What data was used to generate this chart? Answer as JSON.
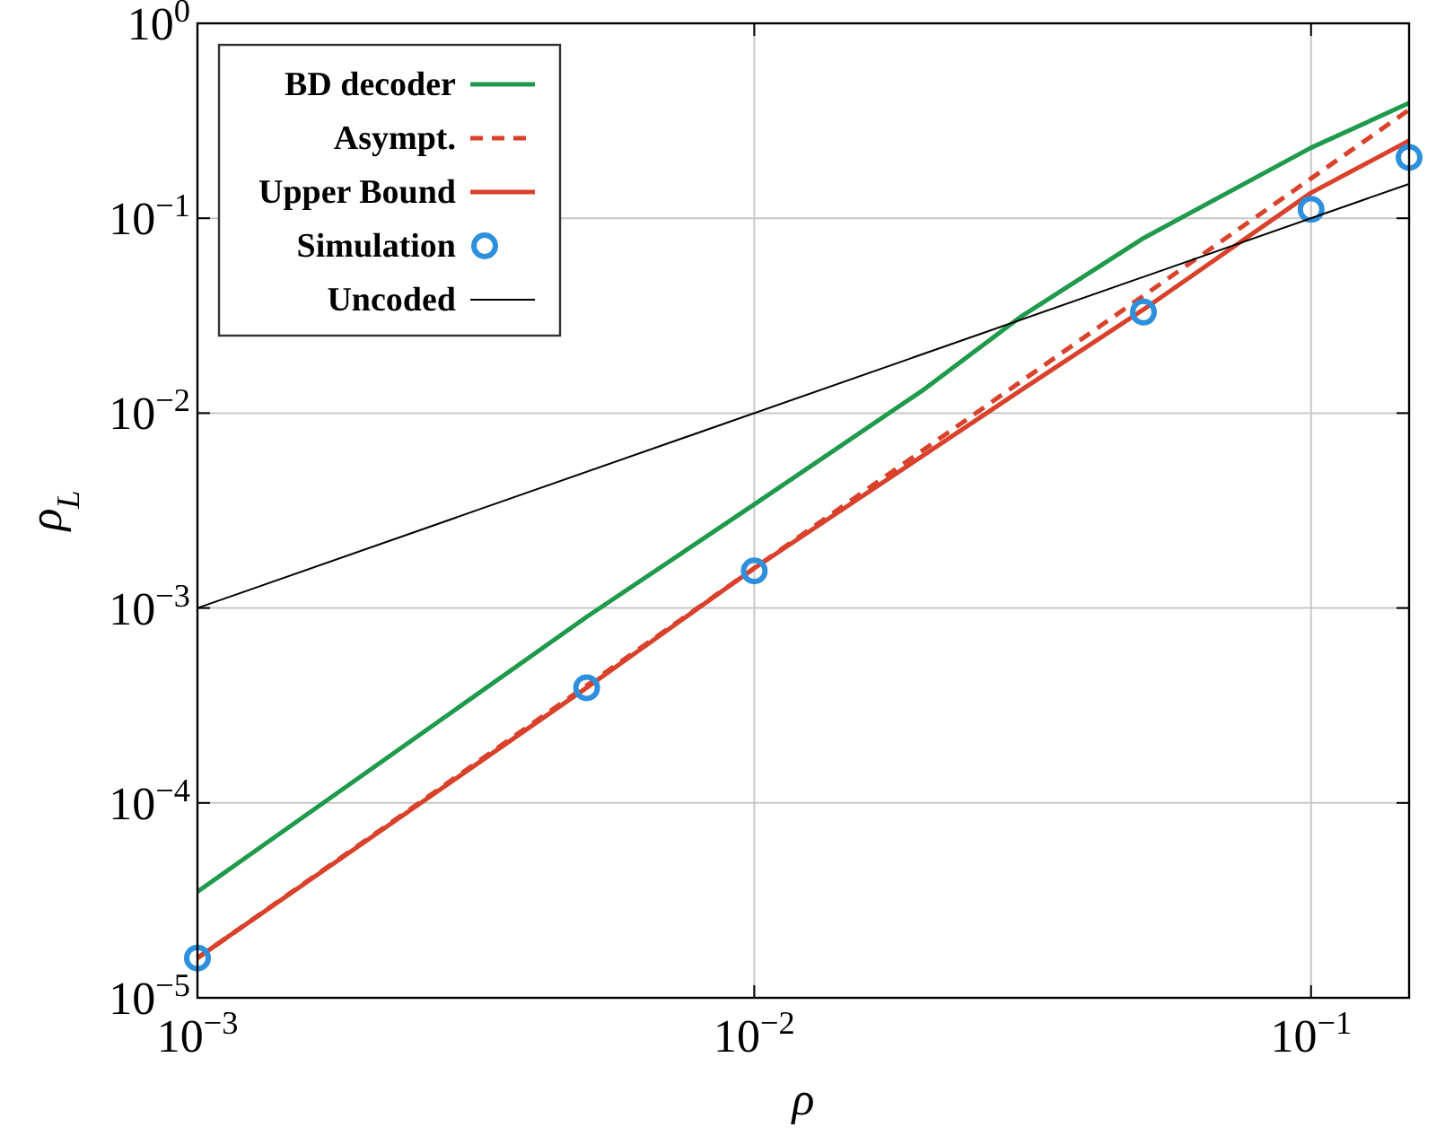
{
  "chart_data": {
    "type": "line",
    "xlabel": "ρ",
    "ylabel": "ρ$_{L}$",
    "log": "xy",
    "grid": true,
    "legend": "top left",
    "xlim": [
      0.001,
      0.15
    ],
    "ylim": [
      1e-05,
      1
    ],
    "xticks": [
      {
        "value": 0.001,
        "label": "10$^{−3}$"
      },
      {
        "value": 0.01,
        "label": "10$^{−2}$"
      },
      {
        "value": 0.1,
        "label": "10$^{−1}$"
      }
    ],
    "yticks": [
      {
        "value": 1e-05,
        "label": "10$^{−5}$"
      },
      {
        "value": 0.0001,
        "label": "10$^{−4}$"
      },
      {
        "value": 0.001,
        "label": "10$^{−3}$"
      },
      {
        "value": 0.01,
        "label": "10$^{−2}$"
      },
      {
        "value": 0.1,
        "label": "10$^{−1}$"
      },
      {
        "value": 1,
        "label": "10$^{0}$"
      }
    ],
    "series": [
      {
        "name": "BD decoder",
        "color": "#1f9a4c",
        "line_style": "solid",
        "marker": "none",
        "x": [
          0.001,
          0.005,
          0.01,
          0.02,
          0.03,
          0.05,
          0.1,
          0.15
        ],
        "values": [
          3.5e-05,
          0.0009,
          0.0034,
          0.013,
          0.031,
          0.079,
          0.23,
          0.39
        ]
      },
      {
        "name": "Asympt.",
        "color": "#d9412b",
        "line_style": "dashed",
        "marker": "none",
        "x": [
          0.001,
          0.01,
          0.1,
          0.15
        ],
        "values": [
          1.6e-05,
          0.0016,
          0.16,
          0.36
        ]
      },
      {
        "name": "Upper Bound",
        "color": "#d9412b",
        "line_style": "solid",
        "marker": "none",
        "x": [
          0.001,
          0.005,
          0.01,
          0.02,
          0.03,
          0.05,
          0.1,
          0.15
        ],
        "values": [
          1.6e-05,
          0.00039,
          0.0016,
          0.006,
          0.013,
          0.034,
          0.135,
          0.25
        ]
      },
      {
        "name": "Simulation",
        "type": "scatter",
        "color": "#2e90dd",
        "marker": "circle",
        "x": [
          0.001,
          0.005,
          0.01,
          0.05,
          0.1,
          0.15
        ],
        "values": [
          1.6e-05,
          0.00039,
          0.00155,
          0.033,
          0.111,
          0.205
        ]
      },
      {
        "name": "Uncoded",
        "color": "#000000",
        "line_style": "solid",
        "marker": "none",
        "x": [
          0.001,
          0.15
        ],
        "values": [
          0.001,
          0.15
        ]
      }
    ]
  }
}
